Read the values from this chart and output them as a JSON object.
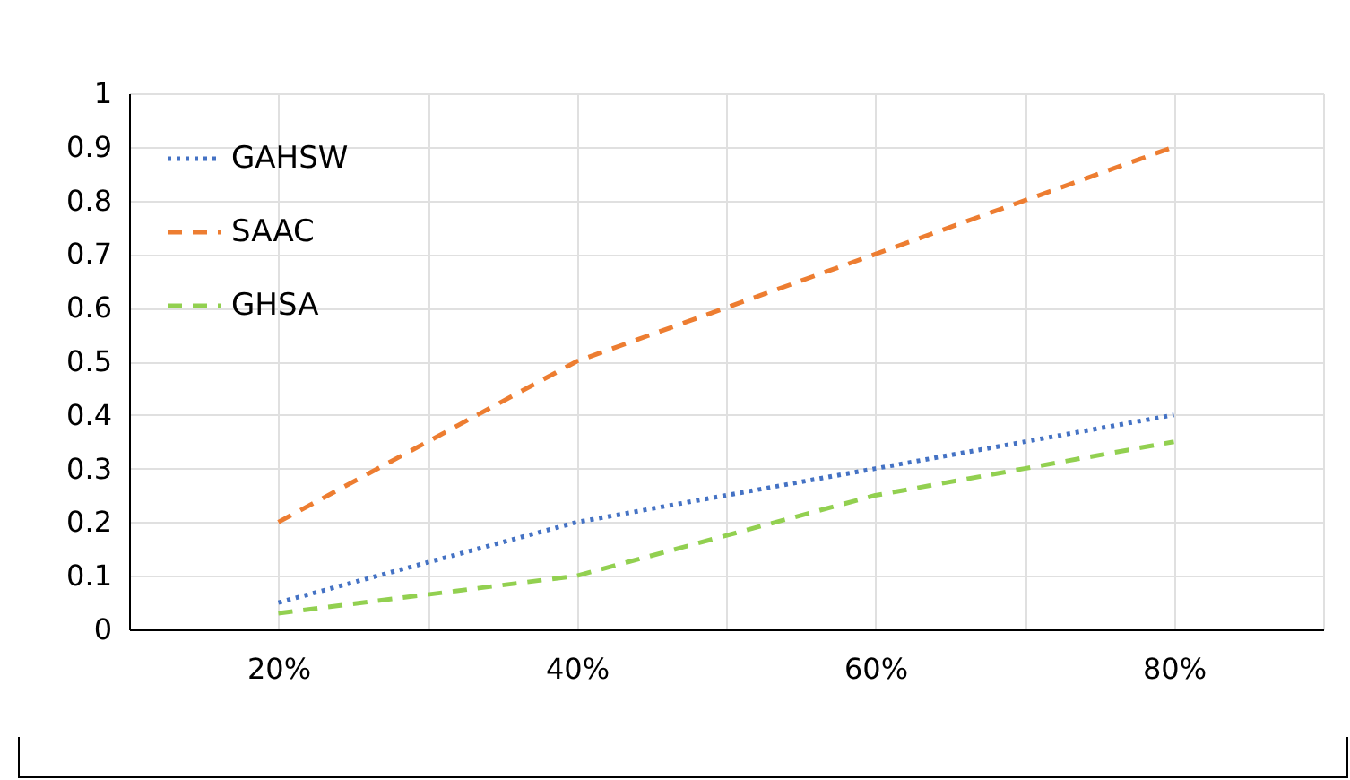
{
  "chart_data": {
    "type": "line",
    "x": [
      20,
      30,
      40,
      50,
      60,
      70,
      80
    ],
    "series": [
      {
        "name": "GAHSW",
        "color": "#4472c4",
        "line_style": "dotted",
        "values": [
          0.05,
          0.125,
          0.2,
          0.25,
          0.3,
          0.35,
          0.4
        ]
      },
      {
        "name": "SAAC",
        "color": "#ed7d31",
        "line_style": "dashed",
        "values": [
          0.2,
          0.35,
          0.5,
          0.6,
          0.7,
          0.8,
          0.9
        ]
      },
      {
        "name": "GHSA",
        "color": "#92d050",
        "line_style": "dashed",
        "values": [
          0.03,
          0.065,
          0.1,
          0.175,
          0.25,
          0.3,
          0.35
        ]
      }
    ],
    "xlim": [
      10,
      90
    ],
    "xticks": [
      {
        "value": 20,
        "label": "20%"
      },
      {
        "value": 30,
        "label": null
      },
      {
        "value": 40,
        "label": "40%"
      },
      {
        "value": 50,
        "label": null
      },
      {
        "value": 60,
        "label": "60%"
      },
      {
        "value": 70,
        "label": null
      },
      {
        "value": 80,
        "label": "80%"
      },
      {
        "value": 90,
        "label": null
      }
    ],
    "ylim": [
      0,
      1
    ],
    "yticks": [
      0,
      0.1,
      0.2,
      0.3,
      0.4,
      0.5,
      0.6,
      0.7,
      0.8,
      0.9,
      1
    ],
    "grid": true,
    "legend": "top left"
  }
}
